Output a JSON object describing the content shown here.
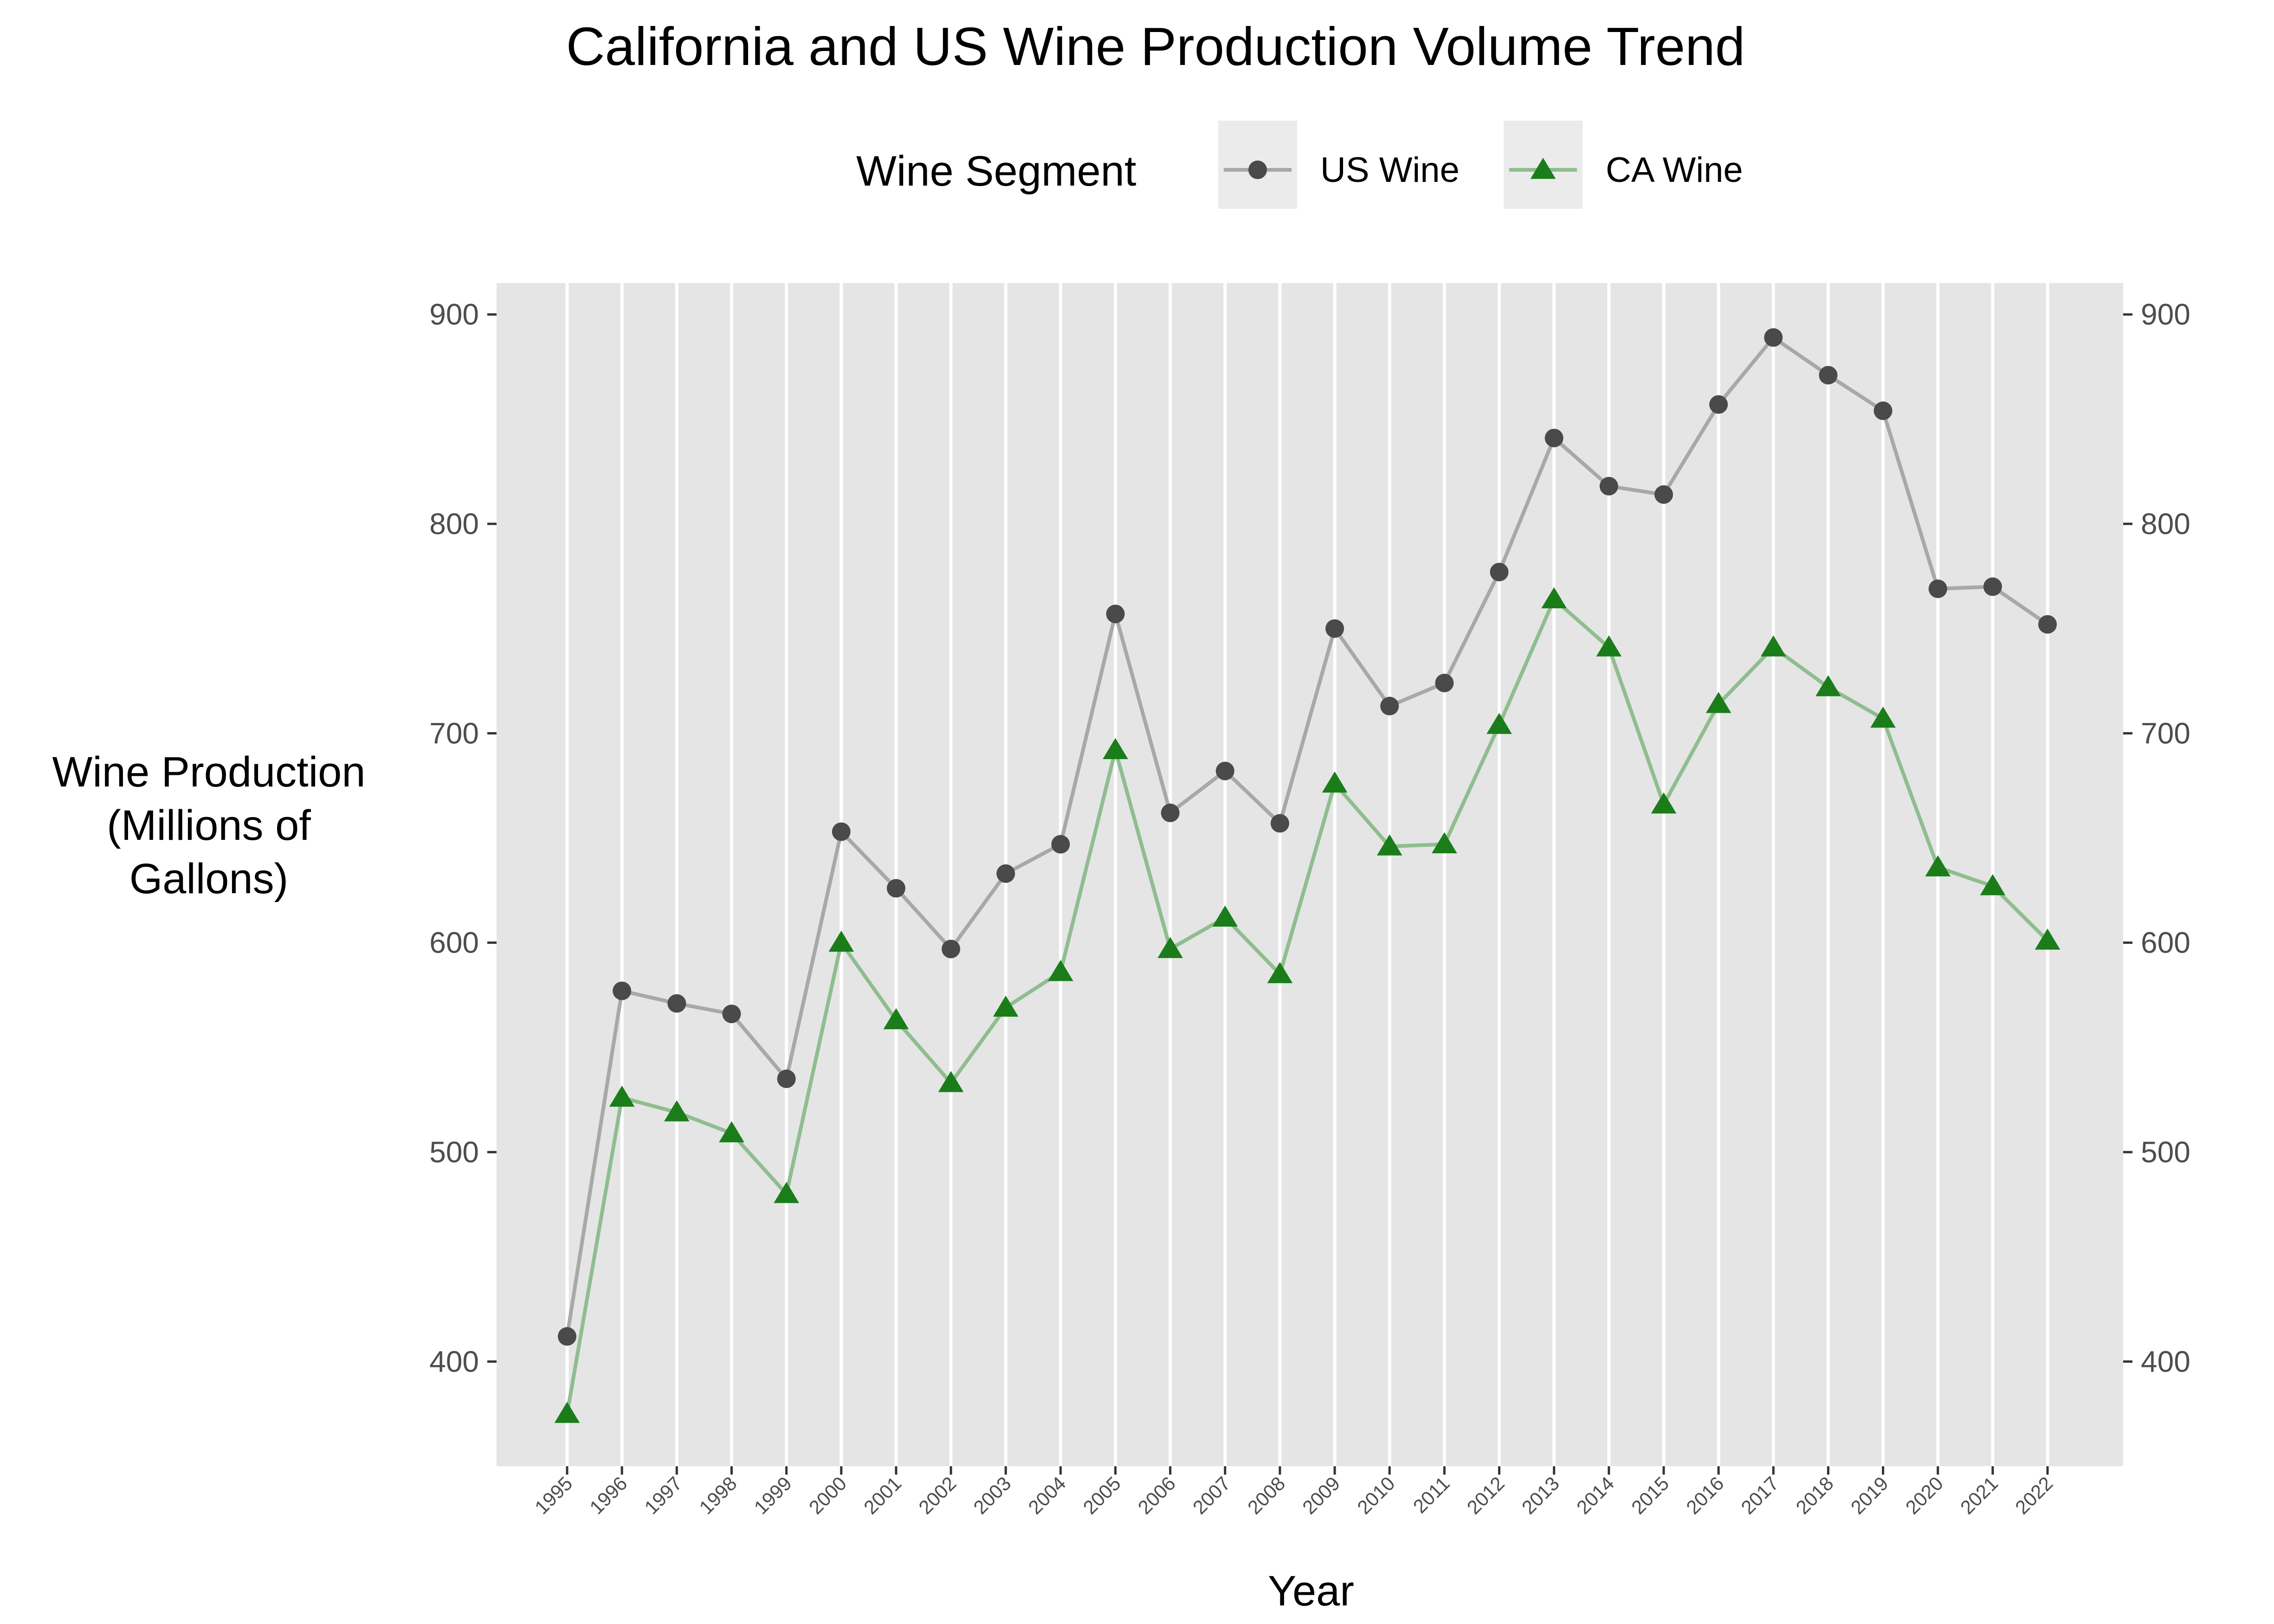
{
  "chart_data": {
    "type": "line",
    "title": "California and US Wine Production Volume Trend",
    "xlabel": "Year",
    "ylabel": "Wine Production\n(Millions of\nGallons)",
    "legend": {
      "title": "Wine Segment",
      "placement": "top"
    },
    "x": [
      "1995",
      "1996",
      "1997",
      "1998",
      "1999",
      "2000",
      "2001",
      "2002",
      "2003",
      "2004",
      "2005",
      "2006",
      "2007",
      "2008",
      "2009",
      "2010",
      "2011",
      "2012",
      "2013",
      "2014",
      "2015",
      "2016",
      "2017",
      "2018",
      "2019",
      "2020",
      "2021",
      "2022"
    ],
    "ylim": [
      350,
      915
    ],
    "yticks": [
      400,
      500,
      600,
      700,
      800,
      900
    ],
    "secondary_y_axis": true,
    "grid": "vertical",
    "series": [
      {
        "name": "US Wine",
        "marker": "circle",
        "line_color": "#a8a8a8",
        "marker_color": "#4a4a4a",
        "values": [
          412,
          577,
          571,
          566,
          535,
          653,
          626,
          597,
          633,
          647,
          757,
          662,
          682,
          657,
          750,
          713,
          724,
          777,
          841,
          818,
          814,
          857,
          889,
          871,
          854,
          769,
          770,
          752
        ]
      },
      {
        "name": "CA Wine",
        "marker": "triangle",
        "line_color": "#8fbd8f",
        "marker_color": "#1a7d1a",
        "values": [
          375,
          526,
          519,
          509,
          480,
          600,
          563,
          533,
          569,
          586,
          692,
          597,
          612,
          585,
          676,
          646,
          647,
          704,
          764,
          741,
          666,
          714,
          741,
          722,
          707,
          636,
          627,
          601
        ]
      }
    ]
  },
  "colors": {
    "panel_background": "#e5e5e5",
    "grid": "#ffffff",
    "axis_text": "#4d4d4d",
    "legend_key_background": "#ebebeb"
  }
}
